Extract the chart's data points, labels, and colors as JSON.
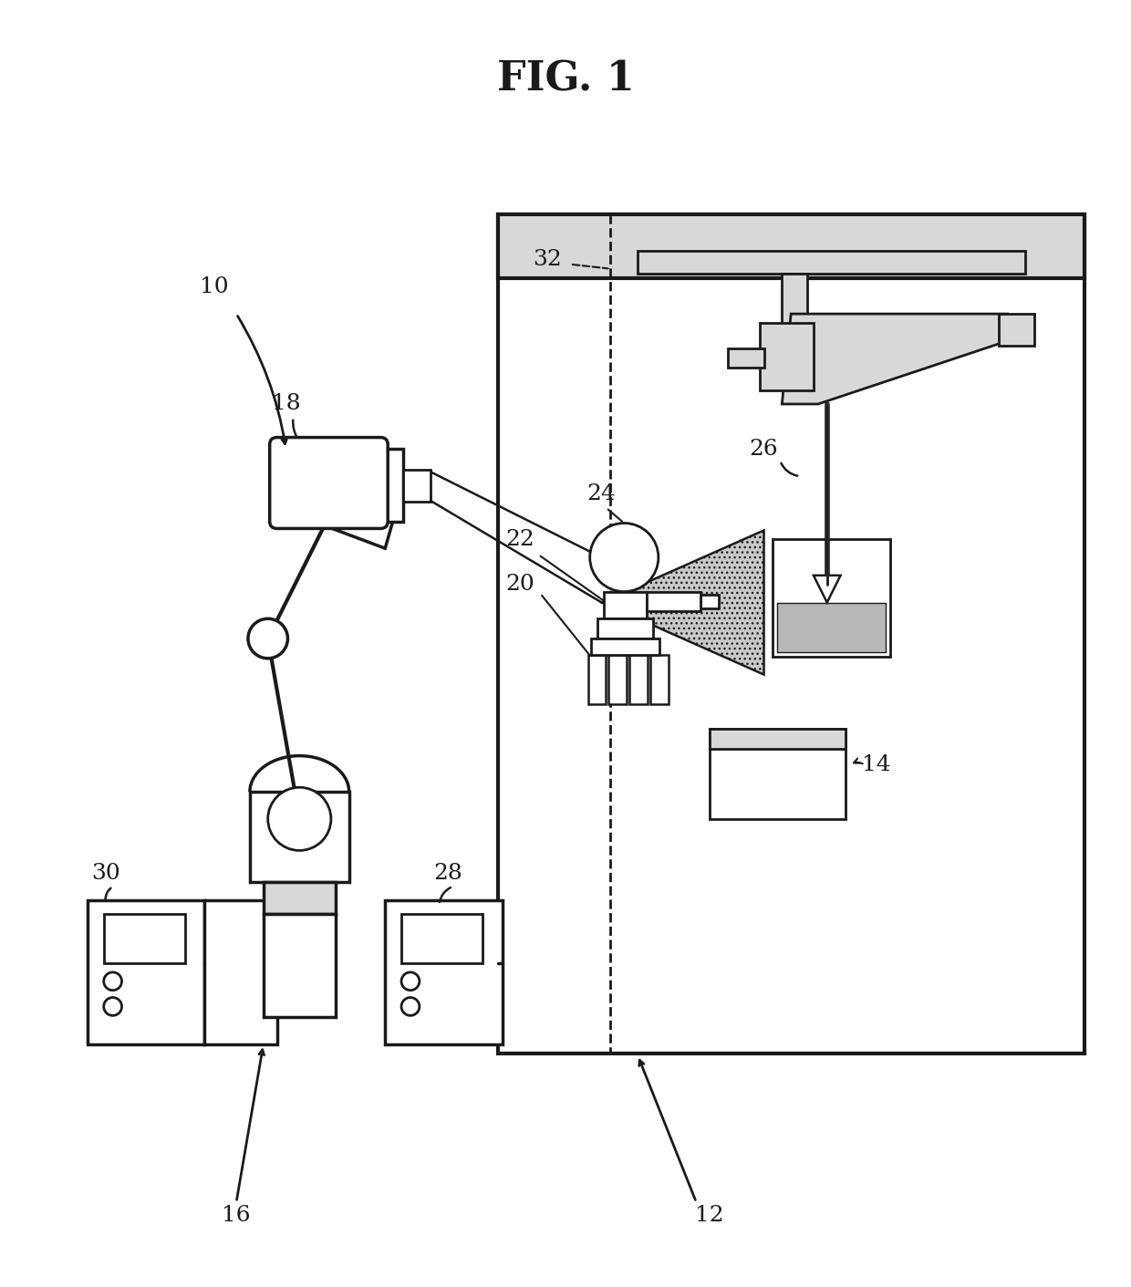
{
  "title": "FIG. 1",
  "line_color": "#1a1a1a",
  "gray_fill": "#d8d8d8",
  "dot_fill": "#b8b8b8",
  "white_fill": "#ffffff"
}
